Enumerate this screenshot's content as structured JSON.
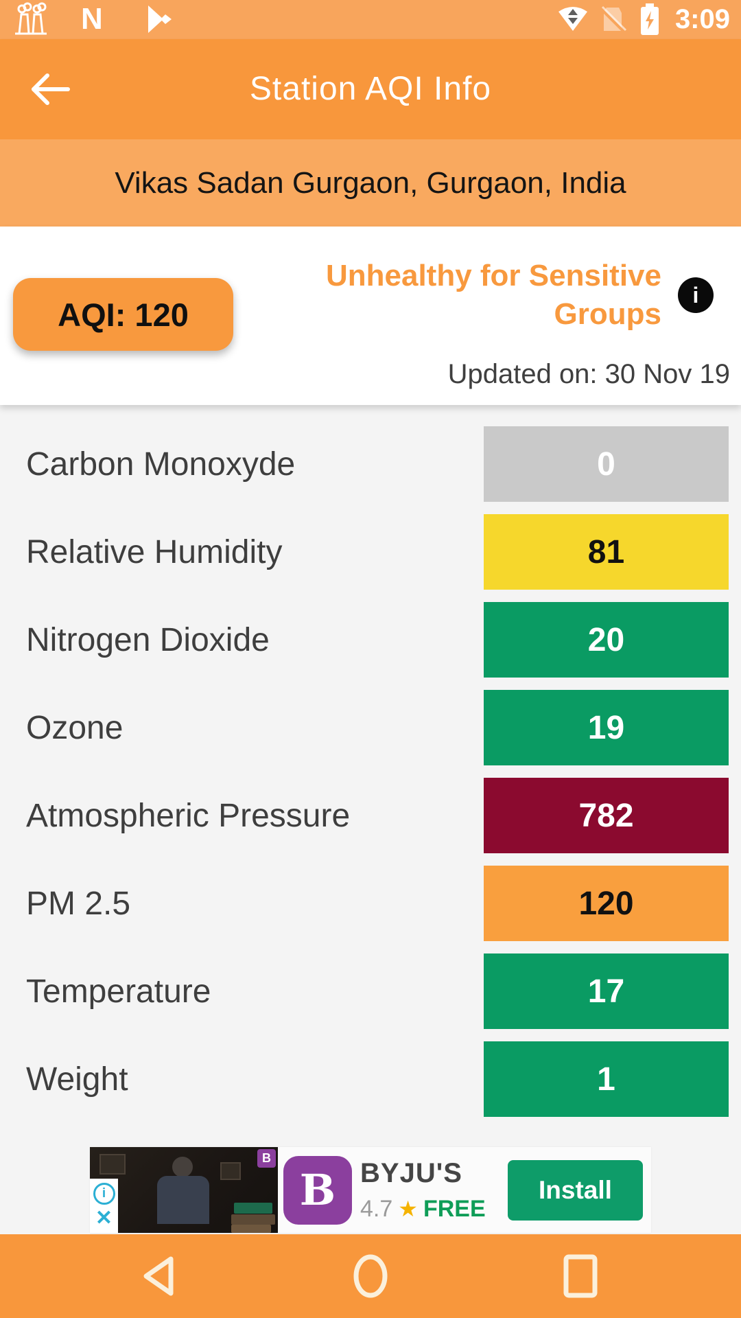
{
  "status_bar": {
    "time": "3:09",
    "icons_left": [
      "factory-notification-icon",
      "android-n-icon",
      "play-store-icon"
    ],
    "icons_right": [
      "wifi-transfer-icon",
      "no-sim-icon",
      "battery-charging-icon"
    ]
  },
  "app_bar": {
    "title": "Station AQI Info"
  },
  "station": {
    "name": "Vikas Sadan Gurgaon, Gurgaon, India"
  },
  "aqi": {
    "badge_label": "AQI: 120",
    "condition_lines": [
      "Unhealthy for Sensitive",
      "Groups"
    ],
    "condition_full": "Unhealthy for Sensitive Groups",
    "info_glyph": "i",
    "updated": "Updated on: 30 Nov 19",
    "accent_color": "#F8993E"
  },
  "measurements": [
    {
      "label": "Carbon Monoxyde",
      "value": "0",
      "bar_color": "#C9C9C9",
      "text_color": "#FFFFFF"
    },
    {
      "label": "Relative Humidity",
      "value": "81",
      "bar_color": "#F6D72C",
      "text_color": "#111111"
    },
    {
      "label": "Nitrogen Dioxide",
      "value": "20",
      "bar_color": "#0A9B63",
      "text_color": "#FFFFFF"
    },
    {
      "label": "Ozone",
      "value": "19",
      "bar_color": "#0A9B63",
      "text_color": "#FFFFFF"
    },
    {
      "label": "Atmospheric Pressure",
      "value": "782",
      "bar_color": "#8B0A2F",
      "text_color": "#FFFFFF"
    },
    {
      "label": "PM 2.5",
      "value": "120",
      "bar_color": "#F99F3E",
      "text_color": "#111111"
    },
    {
      "label": "Temperature",
      "value": "17",
      "bar_color": "#0A9B63",
      "text_color": "#FFFFFF"
    },
    {
      "label": "Weight",
      "value": "1",
      "bar_color": "#0A9B63",
      "text_color": "#FFFFFF"
    }
  ],
  "ad": {
    "app_name": "BYJU'S",
    "logo_letter": "B",
    "badge_letter": "B",
    "rating": "4.7",
    "star": "★",
    "price": "FREE",
    "install_label": "Install",
    "adchoices_glyph": "i",
    "close_glyph": "✕",
    "brand_color": "#8B3F9E",
    "install_color": "#0E9C69"
  },
  "nav_bar": {
    "buttons": [
      "back",
      "home",
      "recents"
    ]
  }
}
